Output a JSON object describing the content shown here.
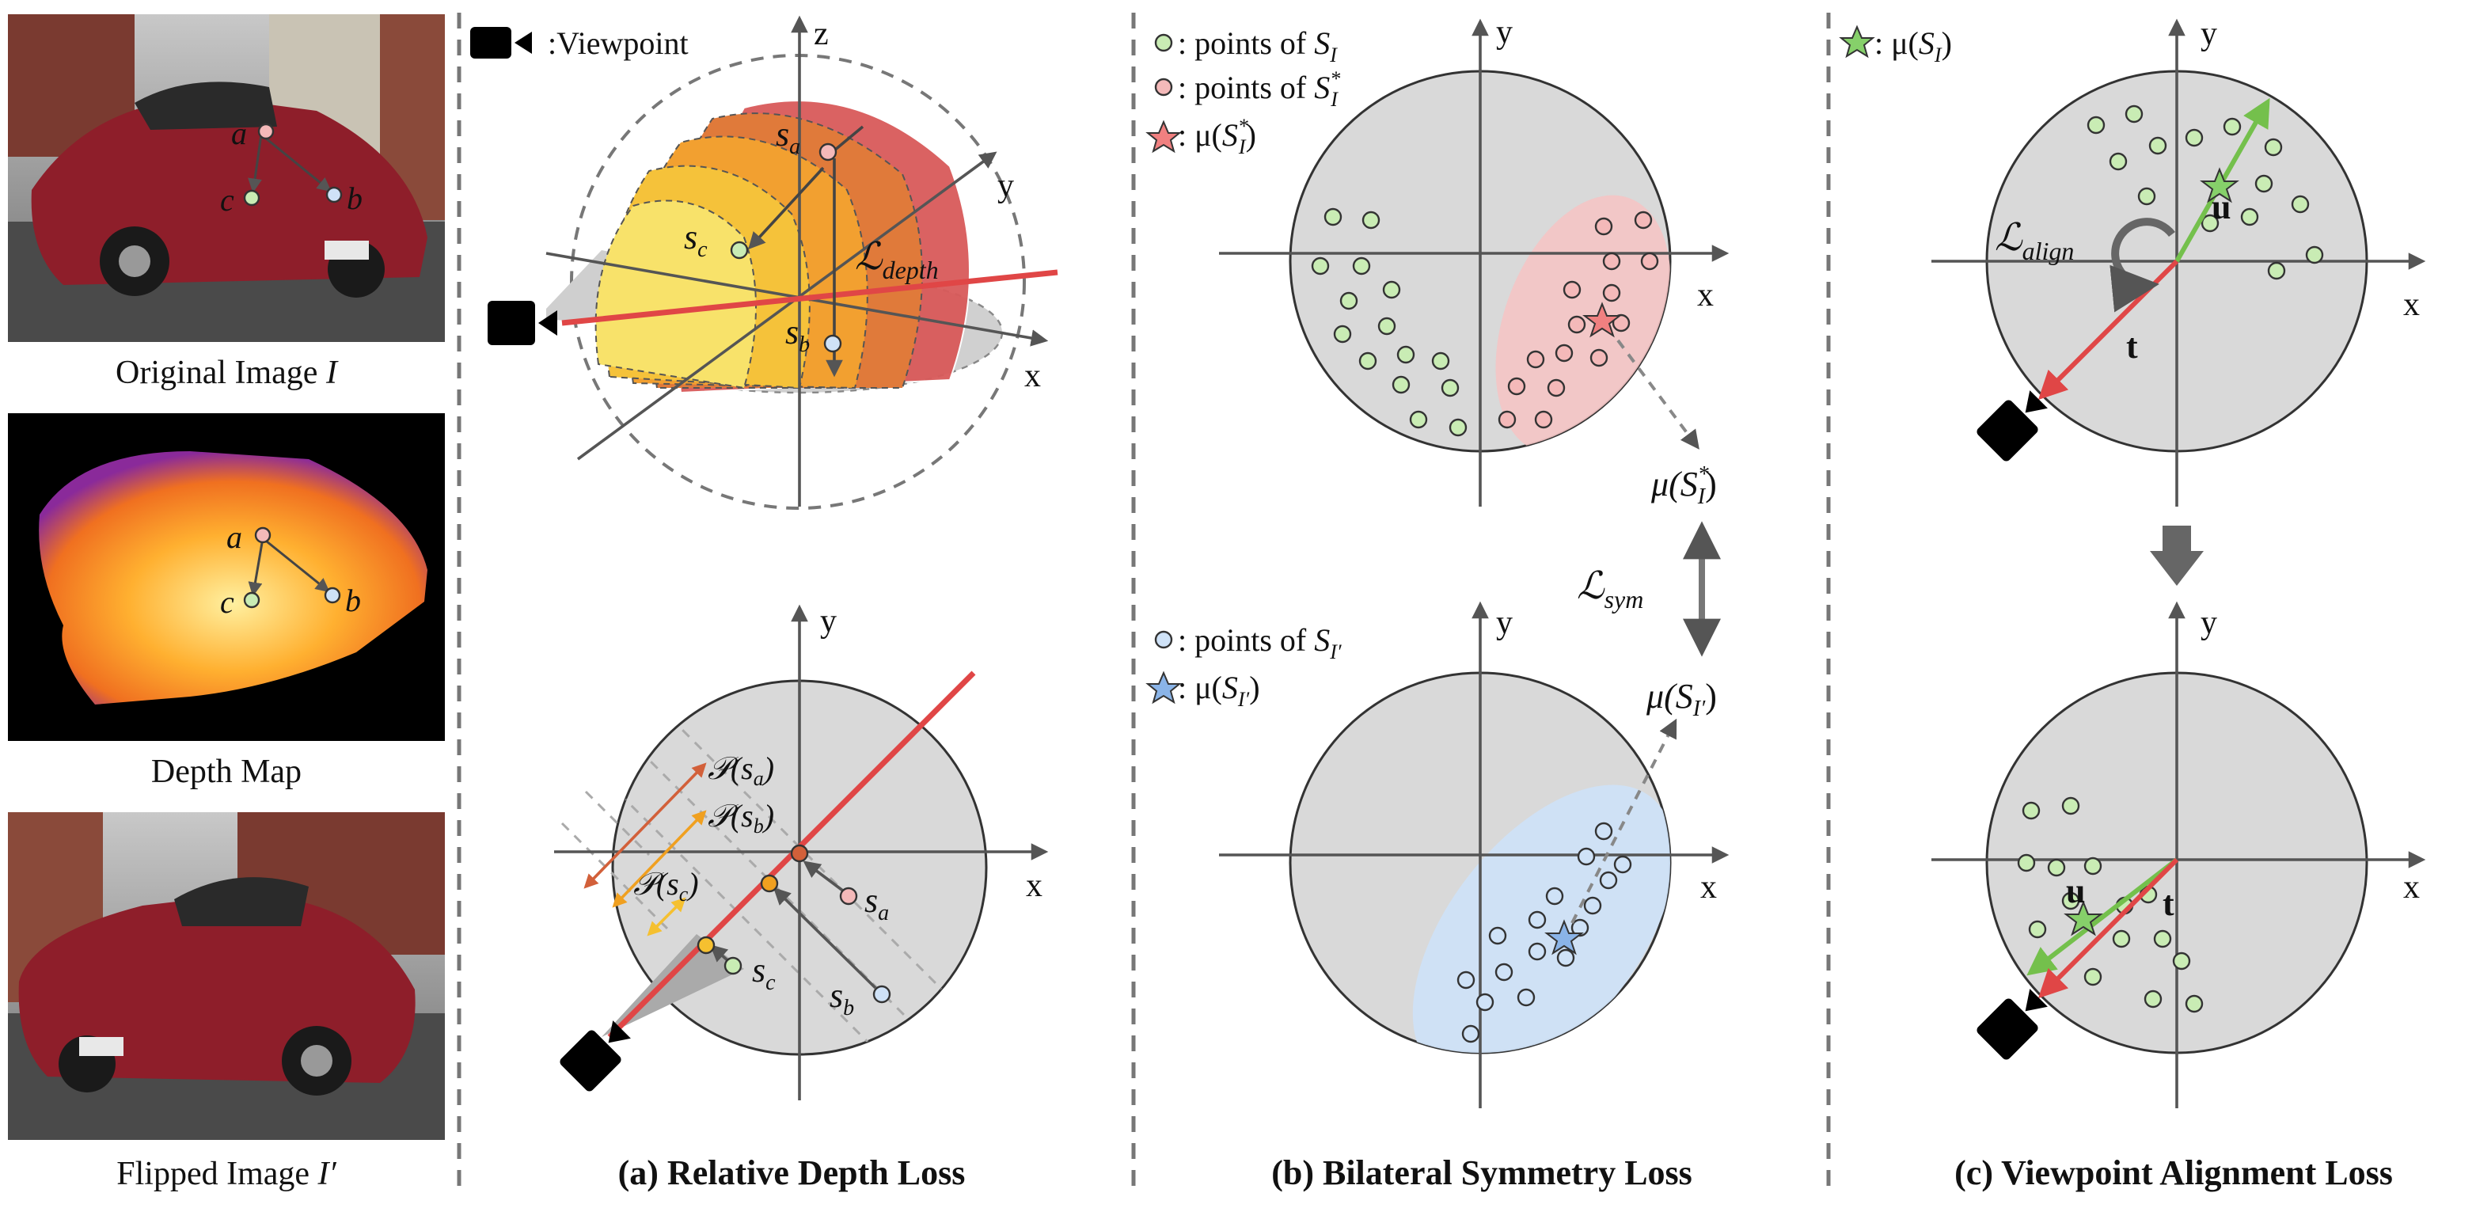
{
  "left_panel": {
    "original_caption_text": "Original Image ",
    "original_caption_var": "I",
    "depth_caption": "Depth Map",
    "flipped_caption_text": "Flipped Image ",
    "flipped_caption_var": "I′",
    "point_a": "a",
    "point_b": "b",
    "point_c": "c"
  },
  "panel_a": {
    "legend_viewpoint": ":Viewpoint",
    "axis_x": "x",
    "axis_y": "y",
    "axis_z": "z",
    "s_a_base": "s",
    "s_a_sub": "a",
    "s_b_base": "s",
    "s_b_sub": "b",
    "s_c_base": "s",
    "s_c_sub": "c",
    "loss_depth_base": "ℒ",
    "loss_depth_sub": "depth",
    "proj_a": "𝒫(s",
    "proj_sub_a": "a",
    "proj_sub_b": "b",
    "proj_sub_c": "c",
    "close_paren": ")",
    "caption": "(a) Relative Depth Loss"
  },
  "panel_b": {
    "legend_points_SI": ": points of ",
    "legend_points_SI_star": ": points of ",
    "legend_points_SIprime": ": points of ",
    "S": "S",
    "sub_I": "I",
    "sub_Iprime": "I′",
    "star": "*",
    "mu": ": μ(",
    "mu_label_open": "μ(",
    "close_paren": ")",
    "loss_sym_base": "ℒ",
    "loss_sym_sub": "sym",
    "axis_x": "x",
    "axis_y": "y",
    "caption": "(b) Bilateral Symmetry Loss"
  },
  "panel_c": {
    "legend_mu": ": μ(",
    "S": "S",
    "sub_I": "I",
    "close_paren": ")",
    "loss_align_base": "ℒ",
    "loss_align_sub": "align",
    "u": "u",
    "t": "t",
    "axis_x": "x",
    "axis_y": "y",
    "caption": "(c) Viewpoint Alignment Loss"
  },
  "colors": {
    "green_point": "#c9ecb4",
    "red_point": "#f4b9b9",
    "blue_point": "#cfe2f7",
    "red_line": "#e04646",
    "green_line": "#74c04c",
    "disc": "#d9d9d9",
    "depth_map_bg": "#000000",
    "car_red": "#8e1e2a"
  }
}
